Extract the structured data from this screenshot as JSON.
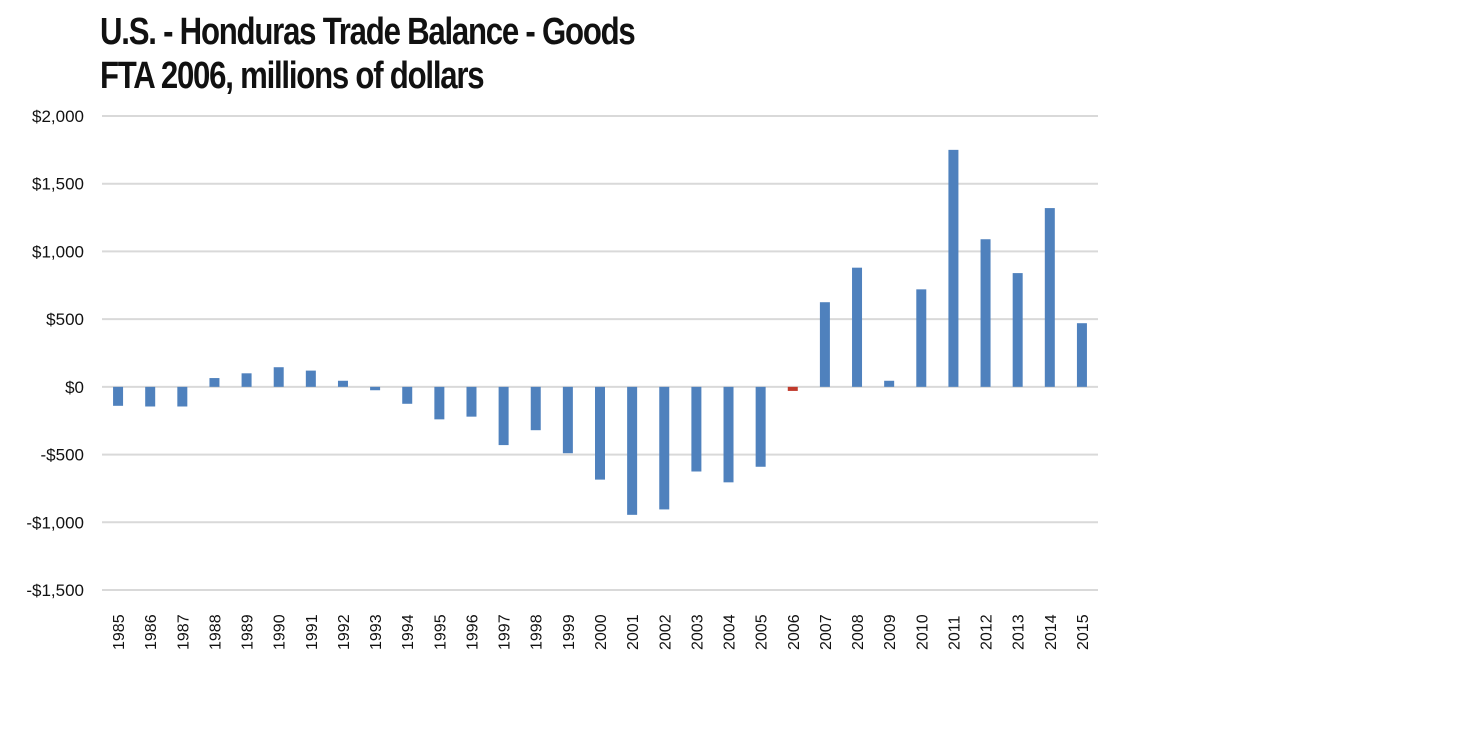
{
  "chart_data": {
    "type": "bar",
    "title": "U.S. - Honduras Trade Balance - Goods",
    "subtitle": "FTA 2006, millions of dollars",
    "xlabel": "",
    "ylabel": "",
    "ylim": [
      -1500,
      2000
    ],
    "yticks": [
      2000,
      1500,
      1000,
      500,
      0,
      -500,
      -1000,
      -1500
    ],
    "ytick_labels": [
      "$2,000",
      "$1,500",
      "$1,000",
      "$500",
      "$0",
      "-$500",
      "-$1,000",
      "-$1,500"
    ],
    "categories": [
      "1985",
      "1986",
      "1987",
      "1988",
      "1989",
      "1990",
      "1991",
      "1992",
      "1993",
      "1994",
      "1995",
      "1996",
      "1997",
      "1998",
      "1999",
      "2000",
      "2001",
      "2002",
      "2003",
      "2004",
      "2005",
      "2006",
      "2007",
      "2008",
      "2009",
      "2010",
      "2011",
      "2012",
      "2013",
      "2014",
      "2015"
    ],
    "values": [
      -140,
      -145,
      -145,
      65,
      100,
      145,
      120,
      45,
      -25,
      -125,
      -240,
      -220,
      -430,
      -320,
      -490,
      -685,
      -945,
      -905,
      -625,
      -705,
      -590,
      -30,
      625,
      880,
      45,
      720,
      1750,
      1090,
      840,
      1320,
      470
    ],
    "highlight_index": 21,
    "colors": {
      "bar": "#4f81bd",
      "highlight": "#c0392b",
      "grid": "#d9d9d9",
      "text": "#111111"
    },
    "grid": true
  }
}
